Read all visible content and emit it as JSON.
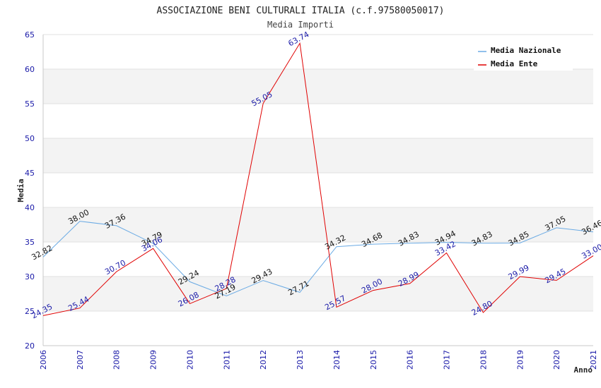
{
  "chart_data": {
    "type": "line",
    "title": "ASSOCIAZIONE BENI CULTURALI ITALIA (c.f.97580050017)",
    "subtitle": "Media Importi",
    "xlabel": "Anno",
    "ylabel": "Media",
    "ylim": [
      20,
      65
    ],
    "yticks": [
      20,
      25,
      30,
      35,
      40,
      45,
      50,
      55,
      60,
      65
    ],
    "categories": [
      "2006",
      "2007",
      "2008",
      "2009",
      "2010",
      "2011",
      "2012",
      "2013",
      "2014",
      "2015",
      "2016",
      "2017",
      "2018",
      "2019",
      "2020",
      "2021"
    ],
    "legend_position": "top-right",
    "grid": true,
    "series": [
      {
        "name": "Media Nazionale",
        "color": "#6aaae4",
        "values": [
          32.82,
          38.0,
          37.36,
          34.79,
          29.24,
          27.19,
          29.43,
          27.71,
          34.32,
          34.68,
          34.83,
          34.94,
          34.83,
          34.85,
          37.05,
          36.46
        ],
        "labels": [
          "32.82",
          "38.00",
          "37.36",
          "34.79",
          "29.24",
          "27.19",
          "29.43",
          "27.71",
          "34.32",
          "34.68",
          "34.83",
          "34.94",
          "34.83",
          "34.85",
          "37.05",
          "36.46"
        ]
      },
      {
        "name": "Media Ente",
        "color": "#e00000",
        "values": [
          24.35,
          25.44,
          30.7,
          34.06,
          26.08,
          28.28,
          55.05,
          63.74,
          25.57,
          28.0,
          28.99,
          33.42,
          24.8,
          29.99,
          29.45,
          33.0
        ],
        "labels": [
          "24.35",
          "25.44",
          "30.70",
          "34.06",
          "26.08",
          "28.28",
          "55.05",
          "63.74",
          "25.57",
          "28.00",
          "28.99",
          "33.42",
          "24.80",
          "29.99",
          "29.45",
          "33.00"
        ]
      }
    ]
  }
}
